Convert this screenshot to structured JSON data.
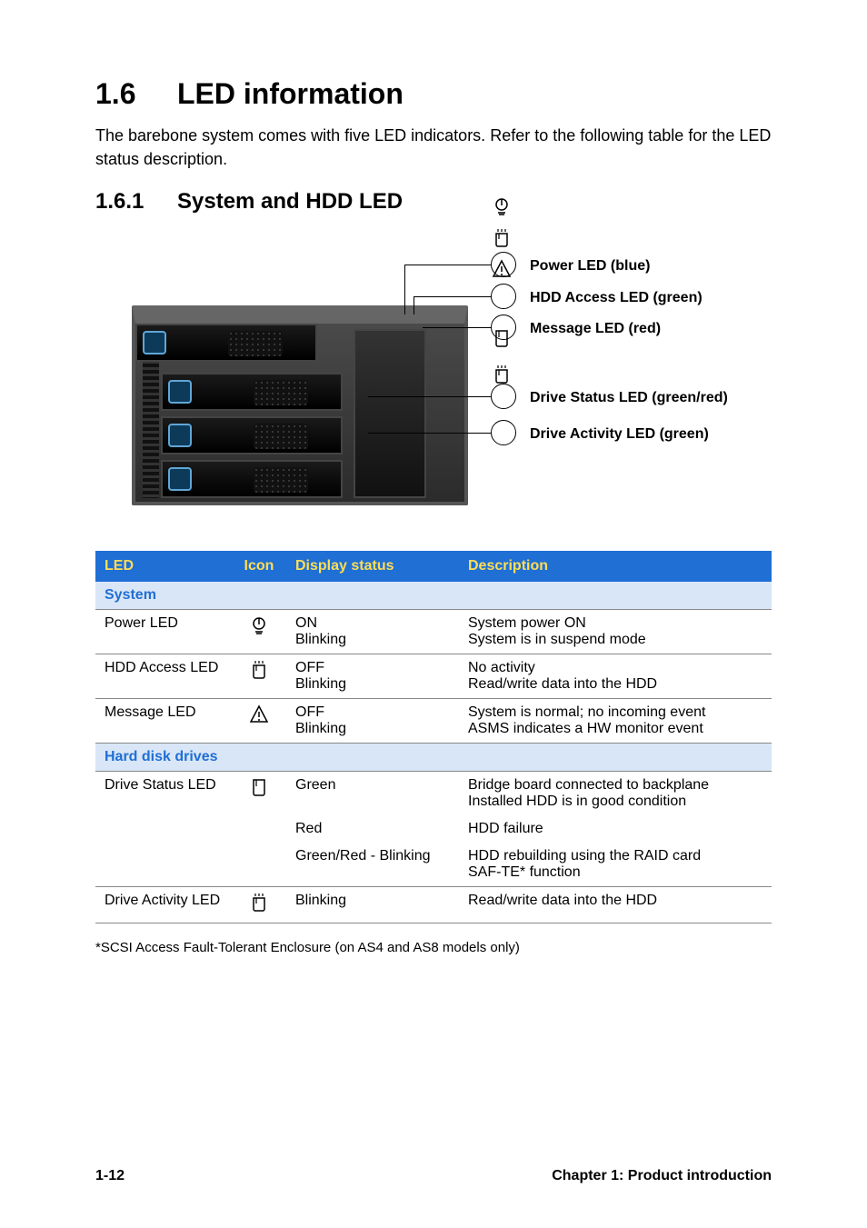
{
  "colors": {
    "page_bg": "#ffffff",
    "text": "#000000",
    "table_header_bg": "#1f6fd4",
    "table_header_fg": "#ffdd55",
    "section_row_bg": "#d9e6f7",
    "section_row_fg": "#1f6fd4",
    "row_border": "#888888"
  },
  "typography": {
    "h1_size_pt": 24,
    "h2_size_pt": 18,
    "body_size_pt": 13.5,
    "table_size_pt": 12,
    "footnote_size_pt": 11
  },
  "heading": {
    "number": "1.6",
    "title": "LED information"
  },
  "intro": "The barebone system comes with five LED indicators. Refer to the following table for the LED status description.",
  "subheading": {
    "number": "1.6.1",
    "title": "System and HDD LED"
  },
  "diagram": {
    "callouts": [
      {
        "icon": "power",
        "label": "Power LED (blue)"
      },
      {
        "icon": "hdd",
        "label": "HDD Access LED (green)"
      },
      {
        "icon": "warn",
        "label": "Message LED (red)"
      },
      {
        "icon": "drive",
        "label": "Drive Status LED (green/red)"
      },
      {
        "icon": "hdd",
        "label": "Drive Activity LED (green)"
      }
    ]
  },
  "table": {
    "headers": [
      "LED",
      "Icon",
      "Display status",
      "Description"
    ],
    "sections": [
      {
        "title": "System",
        "rows": [
          {
            "led": "Power LED",
            "icon": "power",
            "status": "ON\nBlinking",
            "desc": "System power ON\nSystem is in suspend mode"
          },
          {
            "led": "HDD Access LED",
            "icon": "hdd",
            "status": "OFF\nBlinking",
            "desc": "No activity\nRead/write data into the HDD"
          },
          {
            "led": "Message LED",
            "icon": "warn",
            "status": "OFF\nBlinking",
            "desc": "System is normal; no incoming event\nASMS indicates a HW monitor event"
          }
        ]
      },
      {
        "title": "Hard disk drives",
        "rows": [
          {
            "led": "Drive Status LED",
            "icon": "drive",
            "subrows": [
              {
                "status": "Green",
                "desc": "Bridge board connected to backplane\nInstalled HDD is in good condition"
              },
              {
                "status": "Red",
                "desc": "HDD failure"
              },
              {
                "status": "Green/Red - Blinking",
                "desc": "HDD rebuilding using the RAID card\nSAF-TE* function"
              }
            ]
          },
          {
            "led": "Drive Activity LED",
            "icon": "hdd",
            "status": "Blinking",
            "desc": "Read/write data into the HDD"
          }
        ]
      }
    ]
  },
  "footnote": "*SCSI Access Fault-Tolerant Enclosure (on AS4 and AS8 models only)",
  "footer": {
    "left": "1-12",
    "right": "Chapter 1: Product introduction"
  }
}
